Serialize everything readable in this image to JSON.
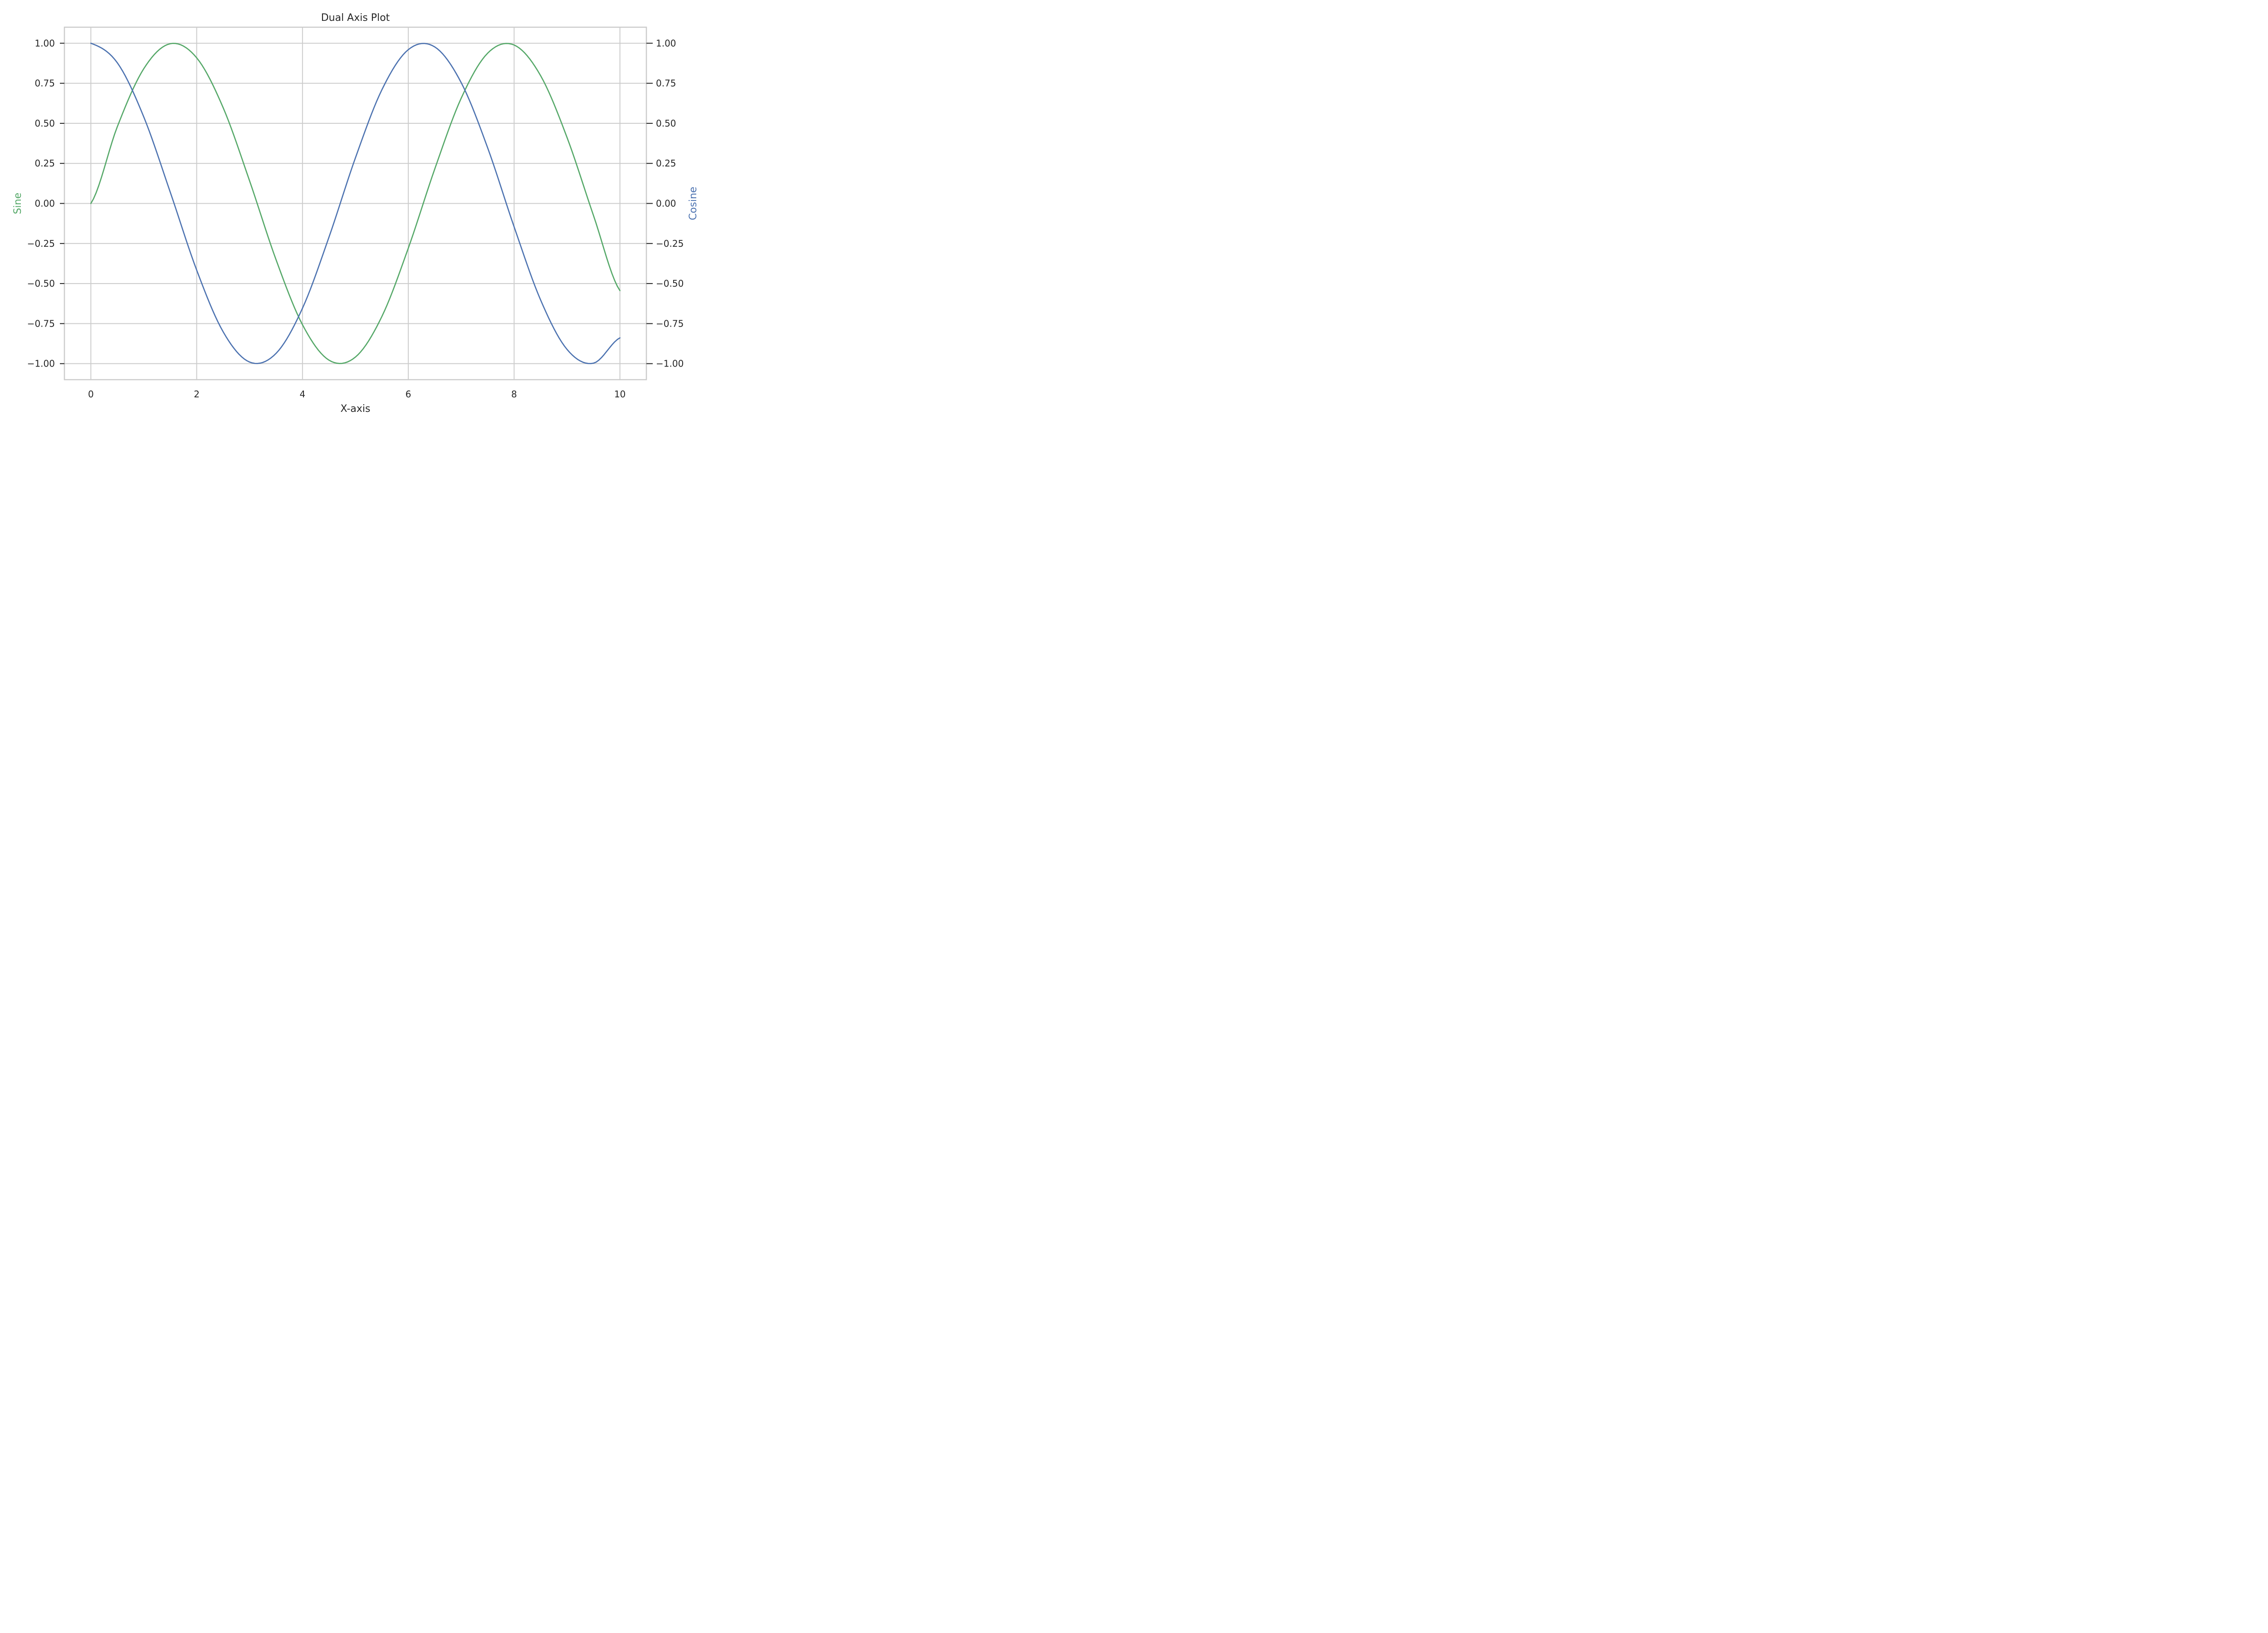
{
  "chart_data": {
    "type": "line",
    "title": "Dual Axis Plot",
    "xlabel": "X-axis",
    "ylabel_left": "Sine",
    "ylabel_right": "Cosine",
    "xlim": [
      -0.5,
      10.5
    ],
    "ylim": [
      -1.1,
      1.1
    ],
    "x_ticks": [
      0,
      2,
      4,
      6,
      8,
      10
    ],
    "x_tick_labels": [
      "0",
      "2",
      "4",
      "6",
      "8",
      "10"
    ],
    "y_ticks": [
      1.0,
      0.75,
      0.5,
      0.25,
      0.0,
      -0.25,
      -0.5,
      -0.75,
      -1.0
    ],
    "y_tick_labels": [
      "1.00",
      "0.75",
      "0.50",
      "0.25",
      "0.00",
      "−0.25",
      "−0.50",
      "−0.75",
      "−1.00"
    ],
    "grid": true,
    "x": [
      0,
      0.5,
      1,
      1.5,
      2,
      2.5,
      3,
      3.5,
      4,
      4.5,
      5,
      5.5,
      6,
      6.5,
      7,
      7.5,
      8,
      8.5,
      9,
      9.5,
      10
    ],
    "series": [
      {
        "axis": "left",
        "color": "#55a868",
        "values": [
          0,
          0.479,
          0.841,
          0.997,
          0.909,
          0.598,
          0.141,
          -0.351,
          -0.757,
          -0.978,
          -0.959,
          -0.706,
          -0.279,
          0.215,
          0.657,
          0.938,
          0.989,
          0.798,
          0.412,
          -0.075,
          -0.544
        ]
      },
      {
        "axis": "right",
        "color": "#4c72b0",
        "values": [
          1,
          0.878,
          0.54,
          0.071,
          -0.416,
          -0.801,
          -0.99,
          -0.936,
          -0.654,
          -0.211,
          0.284,
          0.709,
          0.96,
          0.977,
          0.754,
          0.347,
          -0.146,
          -0.602,
          -0.911,
          -0.997,
          -0.839
        ]
      }
    ]
  }
}
